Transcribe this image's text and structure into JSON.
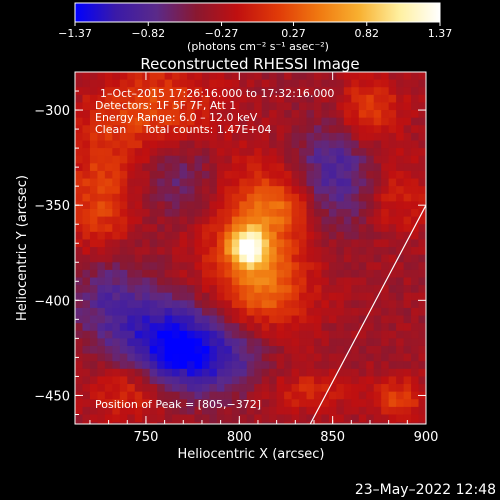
{
  "chart_data": {
    "type": "heatmap",
    "title": "Reconstructed RHESSI Image",
    "xlabel": "Heliocentric X (arcsec)",
    "ylabel": "Heliocentric Y (arcsec)",
    "xlim": [
      712,
      900
    ],
    "ylim": [
      -465,
      -280
    ],
    "x_ticks": [
      750,
      800,
      850,
      900
    ],
    "y_ticks": [
      -300,
      -350,
      -400,
      -450
    ],
    "x_tick_labels": [
      "750",
      "800",
      "850",
      "900"
    ],
    "y_tick_labels": [
      "−300",
      "−350",
      "−400",
      "−450"
    ],
    "colorbar": {
      "min": -1.37,
      "max": 1.37,
      "ticks": [
        -1.37,
        -0.82,
        -0.27,
        0.27,
        0.82,
        1.37
      ],
      "tick_labels": [
        "−1.37",
        "−0.82",
        "−0.27",
        "0.27",
        "0.82",
        "1.37"
      ],
      "unit_label": "(photons cm⁻² s⁻¹ asec⁻²)",
      "colors": [
        "#0000ff",
        "#3a1aa8",
        "#5a2a8a",
        "#8a1830",
        "#c01010",
        "#e03a08",
        "#f07810",
        "#f8b030",
        "#fff0a0",
        "#ffffff"
      ]
    },
    "annotations": [
      "1–Oct–2015 17:26:16.000 to 17:32:16.000",
      "Detectors: 1F 5F 7F, Att 1",
      "Energy Range: 6.0 – 12.0 keV",
      "Clean     Total counts: 1.47E+04"
    ],
    "peak_label": "Position of Peak = [805,−372]",
    "peak": [
      805,
      -372
    ],
    "limb_line": [
      [
        838,
        -465
      ],
      [
        900,
        -350
      ]
    ],
    "sources": [
      {
        "x": 805,
        "y": -372,
        "amp": 1.37,
        "sx": 7,
        "sy": 7
      },
      {
        "x": 808,
        "y": -372,
        "amp": 0.55,
        "sx": 22,
        "sy": 30
      },
      {
        "x": 822,
        "y": -350,
        "amp": 0.45,
        "sx": 14,
        "sy": 12
      },
      {
        "x": 815,
        "y": -395,
        "amp": 0.4,
        "sx": 14,
        "sy": 12
      },
      {
        "x": 755,
        "y": -300,
        "amp": 0.55,
        "sx": 22,
        "sy": 18
      },
      {
        "x": 725,
        "y": -350,
        "amp": 0.55,
        "sx": 12,
        "sy": 28
      },
      {
        "x": 870,
        "y": -300,
        "amp": 0.55,
        "sx": 12,
        "sy": 12
      },
      {
        "x": 885,
        "y": -345,
        "amp": 0.35,
        "sx": 12,
        "sy": 14
      },
      {
        "x": 740,
        "y": -448,
        "amp": 0.45,
        "sx": 14,
        "sy": 10
      },
      {
        "x": 885,
        "y": -452,
        "amp": 0.5,
        "sx": 10,
        "sy": 8
      },
      {
        "x": 838,
        "y": -448,
        "amp": 0.35,
        "sx": 16,
        "sy": 8
      },
      {
        "x": 760,
        "y": -420,
        "amp": -0.8,
        "sx": 18,
        "sy": 16
      },
      {
        "x": 785,
        "y": -430,
        "amp": -0.7,
        "sx": 20,
        "sy": 14
      },
      {
        "x": 850,
        "y": -335,
        "amp": -0.6,
        "sx": 16,
        "sy": 20
      },
      {
        "x": 728,
        "y": -395,
        "amp": -0.55,
        "sx": 14,
        "sy": 18
      },
      {
        "x": 770,
        "y": -335,
        "amp": -0.4,
        "sx": 14,
        "sy": 16
      }
    ],
    "background_level": -0.35
  },
  "footer": {
    "date": "23–May–2022 12:48"
  }
}
